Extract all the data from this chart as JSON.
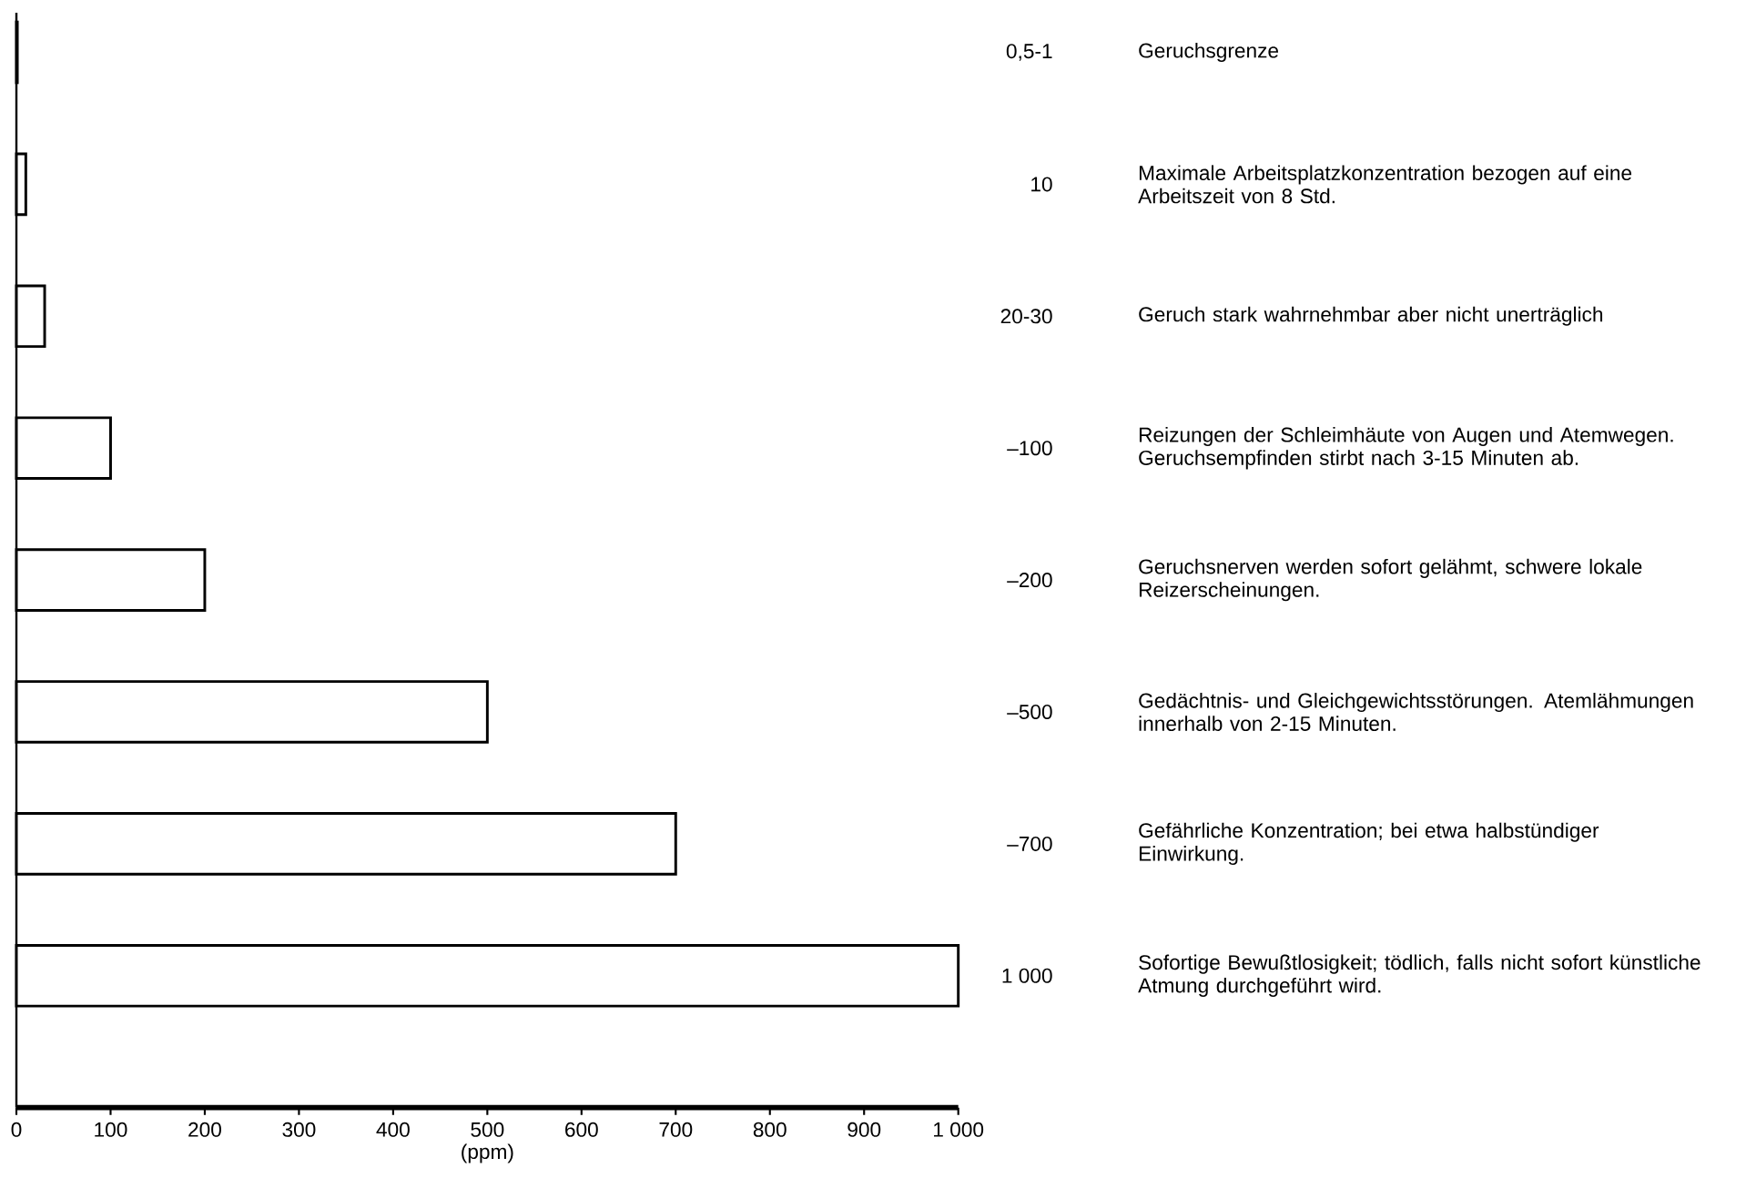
{
  "chart_data": {
    "type": "bar",
    "orientation": "horizontal",
    "categories": [
      "Geruchsgrenze",
      "Maximale Arbeitsplatzkonzentration bezogen auf eine Arbeitszeit von 8 Std.",
      "Geruch stark wahrnehmbar aber nicht unerträglich",
      "Reizungen der Schleimhäute von Augen und Atemwegen. Geruchsempfinden stirbt nach 3-15 Minuten ab.",
      "Geruchsnerven werden sofort gelähmt, schwere lokale Reizerscheinungen.",
      "Gedächtnis- und Gleichgewichtsstörungen. Atemlähmungen innerhalb von 2-15 Minuten.",
      "Gefährliche Konzentration; bei etwa halbstündiger Einwirkung.",
      "Sofortige Bewußtlosigkeit; tödlich, falls nicht sofort künstliche Atmung durchgeführt wird."
    ],
    "values": [
      1,
      10,
      30,
      100,
      200,
      500,
      700,
      1000
    ],
    "annotations": [
      "0,5-1",
      "10",
      "20-30",
      "–100",
      "–200",
      "–500",
      "–700",
      "1 000"
    ],
    "color": "#ffffff",
    "xlabel": "(ppm)",
    "xlim": [
      0,
      1000
    ],
    "xticks": [
      0,
      100,
      200,
      300,
      400,
      500,
      600,
      700,
      800,
      900,
      {
        "value": 1000,
        "label": "1 000"
      }
    ],
    "grid": false
  }
}
